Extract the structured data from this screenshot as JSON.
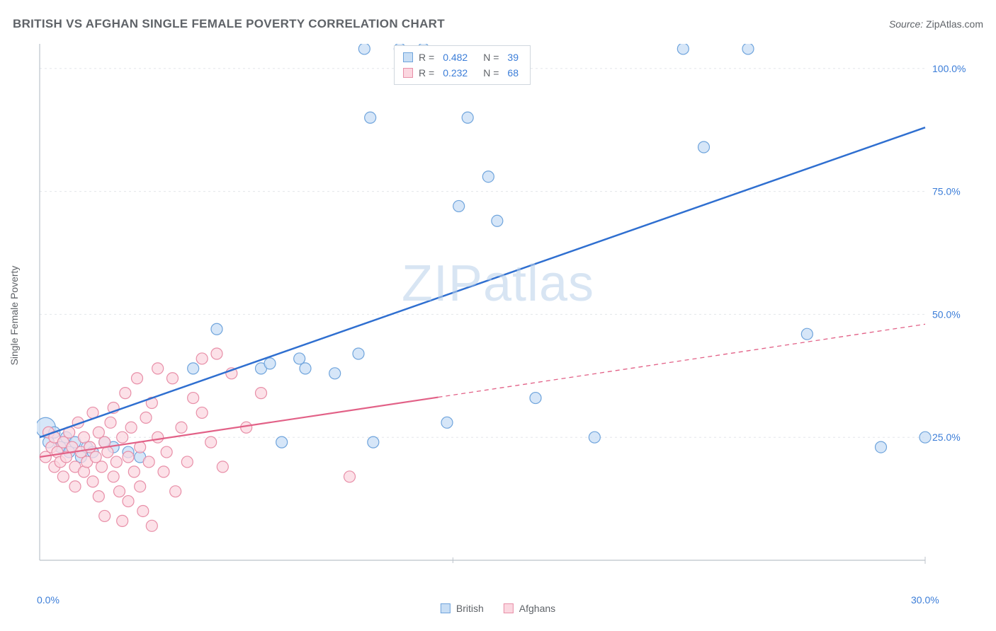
{
  "title": "BRITISH VS AFGHAN SINGLE FEMALE POVERTY CORRELATION CHART",
  "source_label": "Source:",
  "source_name": "ZipAtlas.com",
  "ylabel": "Single Female Poverty",
  "watermark": "ZIPatlas",
  "chart": {
    "type": "scatter",
    "xlim": [
      0,
      30
    ],
    "ylim": [
      0,
      105
    ],
    "x_ticks": [
      0,
      30
    ],
    "x_tick_labels": [
      "0.0%",
      "30.0%"
    ],
    "y_ticks": [
      25,
      50,
      75,
      100
    ],
    "y_tick_labels": [
      "25.0%",
      "50.0%",
      "75.0%",
      "100.0%"
    ],
    "grid_color": "#e3e6ea",
    "axis_color": "#bcc3cb",
    "background_color": "#ffffff",
    "tick_label_color": "#3b7dd8",
    "axis_label_color": "#5f6368",
    "title_color": "#5f6368",
    "title_fontsize": 17,
    "label_fontsize": 14,
    "series": [
      {
        "name": "British",
        "marker_fill": "#c8def5",
        "marker_stroke": "#6fa4dc",
        "marker_radius": 8,
        "line_color": "#2f6fd0",
        "line_width": 2.5,
        "R": 0.482,
        "N": 39,
        "trend": {
          "x1": 0,
          "y1": 25,
          "x2": 30,
          "y2": 88
        },
        "points": [
          [
            0.2,
            27,
            14
          ],
          [
            0.3,
            24,
            8
          ],
          [
            0.5,
            26,
            8
          ],
          [
            0.7,
            23,
            8
          ],
          [
            0.9,
            25,
            8
          ],
          [
            1.0,
            22,
            8
          ],
          [
            1.2,
            24,
            8
          ],
          [
            1.4,
            21,
            8
          ],
          [
            1.6,
            23,
            8
          ],
          [
            1.8,
            22,
            8
          ],
          [
            2.2,
            24,
            8
          ],
          [
            2.5,
            23,
            8
          ],
          [
            3.0,
            22,
            8
          ],
          [
            3.4,
            21,
            8
          ],
          [
            5.2,
            39,
            8
          ],
          [
            6.0,
            47,
            8
          ],
          [
            7.5,
            39,
            8
          ],
          [
            7.8,
            40,
            8
          ],
          [
            8.2,
            24,
            8
          ],
          [
            8.8,
            41,
            8
          ],
          [
            9.0,
            39,
            8
          ],
          [
            10.0,
            38,
            8
          ],
          [
            10.8,
            42,
            8
          ],
          [
            11.0,
            104,
            8
          ],
          [
            11.2,
            90,
            8
          ],
          [
            11.3,
            24,
            8
          ],
          [
            12.2,
            104,
            8
          ],
          [
            13.0,
            104,
            8
          ],
          [
            13.8,
            28,
            8
          ],
          [
            14.2,
            72,
            8
          ],
          [
            14.5,
            90,
            8
          ],
          [
            15.2,
            78,
            8
          ],
          [
            15.5,
            69,
            8
          ],
          [
            16.8,
            33,
            8
          ],
          [
            18.8,
            25,
            8
          ],
          [
            21.8,
            104,
            8
          ],
          [
            22.5,
            84,
            8
          ],
          [
            24.0,
            104,
            8
          ],
          [
            26.0,
            46,
            8
          ],
          [
            28.5,
            23,
            8
          ],
          [
            30.0,
            25,
            8
          ]
        ]
      },
      {
        "name": "Afghans",
        "marker_fill": "#fbd7e0",
        "marker_stroke": "#e88fa8",
        "marker_radius": 8,
        "line_color": "#e26187",
        "line_width": 2.2,
        "R": 0.232,
        "N": 68,
        "trend": {
          "x1": 0,
          "y1": 21,
          "x2": 30,
          "y2": 48
        },
        "trend_solid_until_x": 13.5,
        "dash": "6 5",
        "points": [
          [
            0.2,
            21,
            8
          ],
          [
            0.3,
            26,
            8
          ],
          [
            0.4,
            23,
            8
          ],
          [
            0.5,
            19,
            8
          ],
          [
            0.5,
            25,
            8
          ],
          [
            0.6,
            22,
            8
          ],
          [
            0.7,
            20,
            8
          ],
          [
            0.8,
            24,
            8
          ],
          [
            0.8,
            17,
            8
          ],
          [
            0.9,
            21,
            8
          ],
          [
            1.0,
            26,
            8
          ],
          [
            1.1,
            23,
            8
          ],
          [
            1.2,
            19,
            8
          ],
          [
            1.2,
            15,
            8
          ],
          [
            1.3,
            28,
            8
          ],
          [
            1.4,
            22,
            8
          ],
          [
            1.5,
            18,
            8
          ],
          [
            1.5,
            25,
            8
          ],
          [
            1.6,
            20,
            8
          ],
          [
            1.7,
            23,
            8
          ],
          [
            1.8,
            16,
            8
          ],
          [
            1.8,
            30,
            8
          ],
          [
            1.9,
            21,
            8
          ],
          [
            2.0,
            26,
            8
          ],
          [
            2.0,
            13,
            8
          ],
          [
            2.1,
            19,
            8
          ],
          [
            2.2,
            24,
            8
          ],
          [
            2.2,
            9,
            8
          ],
          [
            2.3,
            22,
            8
          ],
          [
            2.4,
            28,
            8
          ],
          [
            2.5,
            17,
            8
          ],
          [
            2.5,
            31,
            8
          ],
          [
            2.6,
            20,
            8
          ],
          [
            2.7,
            14,
            8
          ],
          [
            2.8,
            8,
            8
          ],
          [
            2.8,
            25,
            8
          ],
          [
            2.9,
            34,
            8
          ],
          [
            3.0,
            21,
            8
          ],
          [
            3.0,
            12,
            8
          ],
          [
            3.1,
            27,
            8
          ],
          [
            3.2,
            18,
            8
          ],
          [
            3.3,
            37,
            8
          ],
          [
            3.4,
            23,
            8
          ],
          [
            3.4,
            15,
            8
          ],
          [
            3.5,
            10,
            8
          ],
          [
            3.6,
            29,
            8
          ],
          [
            3.7,
            20,
            8
          ],
          [
            3.8,
            32,
            8
          ],
          [
            3.8,
            7,
            8
          ],
          [
            4.0,
            25,
            8
          ],
          [
            4.0,
            39,
            8
          ],
          [
            4.2,
            18,
            8
          ],
          [
            4.3,
            22,
            8
          ],
          [
            4.5,
            37,
            8
          ],
          [
            4.6,
            14,
            8
          ],
          [
            4.8,
            27,
            8
          ],
          [
            5.0,
            20,
            8
          ],
          [
            5.2,
            33,
            8
          ],
          [
            5.5,
            41,
            8
          ],
          [
            5.5,
            30,
            8
          ],
          [
            5.8,
            24,
            8
          ],
          [
            6.0,
            42,
            8
          ],
          [
            6.2,
            19,
            8
          ],
          [
            6.5,
            38,
            8
          ],
          [
            7.0,
            27,
            8
          ],
          [
            7.5,
            34,
            8
          ],
          [
            10.5,
            17,
            8
          ]
        ]
      }
    ],
    "legend_bottom": [
      {
        "label": "British",
        "fill": "#c8def5",
        "stroke": "#6fa4dc"
      },
      {
        "label": "Afghans",
        "fill": "#fbd7e0",
        "stroke": "#e88fa8"
      }
    ]
  }
}
